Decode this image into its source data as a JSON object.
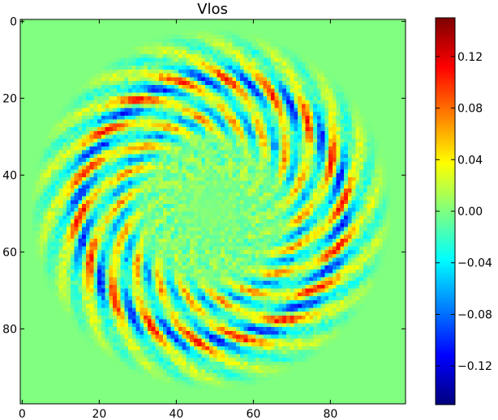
{
  "chart_data": {
    "type": "heatmap",
    "title": "Vlos",
    "xlabel": "",
    "ylabel": "",
    "xlim": [
      0,
      99
    ],
    "ylim": [
      99,
      0
    ],
    "grid": false,
    "x_ticks": [
      0,
      20,
      40,
      60,
      80
    ],
    "x_tick_labels": [
      "0",
      "20",
      "40",
      "60",
      "80"
    ],
    "y_ticks": [
      0,
      20,
      40,
      60,
      80
    ],
    "y_tick_labels": [
      "0",
      "20",
      "40",
      "60",
      "80"
    ],
    "grid_size": [
      100,
      100
    ],
    "pattern": {
      "center": [
        49,
        49
      ],
      "disk_radius": 47,
      "petals": 18,
      "inner_hole_radius": 9,
      "peak_radius": 32,
      "peak_amplitude": 0.11,
      "background_value": 0.0
    },
    "colorbar": {
      "colormap": "jet",
      "vmin": -0.15,
      "vmax": 0.15,
      "ticks": [
        0.12,
        0.08,
        0.04,
        0.0,
        -0.04,
        -0.08,
        -0.12
      ],
      "tick_labels": [
        "0.12",
        "0.08",
        "0.04",
        "0.00",
        "−0.04",
        "−0.08",
        "−0.12"
      ]
    }
  }
}
